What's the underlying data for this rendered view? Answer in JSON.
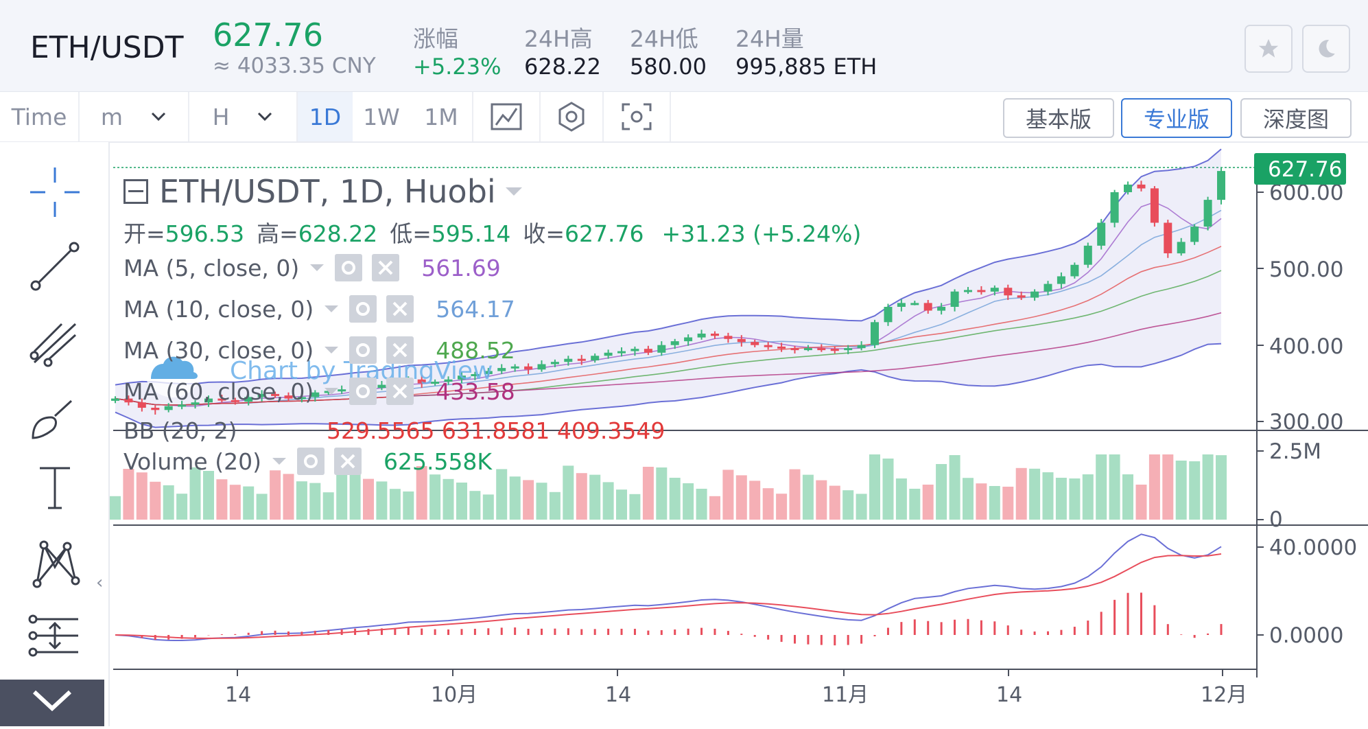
{
  "header": {
    "symbol": "ETH/USDT",
    "last_price": "627.76",
    "cny": "≈ 4033.35 CNY",
    "stats": [
      {
        "label": "涨幅",
        "value": "+5.23%"
      },
      {
        "label": "24H高",
        "value": "628.22"
      },
      {
        "label": "24H低",
        "value": "580.00"
      },
      {
        "label": "24H量",
        "value": "995,885 ETH"
      }
    ]
  },
  "toolbar": {
    "time": "Time",
    "minute": "m",
    "hour": "H",
    "intervals": [
      "1D",
      "1W",
      "1M"
    ],
    "active_interval": "1D",
    "views": [
      "基本版",
      "专业版",
      "深度图"
    ],
    "active_view": "专业版"
  },
  "legend": {
    "title": "ETH/USDT, 1D, Huobi",
    "ohlc": {
      "o_label": "开=",
      "o": "596.53",
      "h_label": "高=",
      "h": "628.22",
      "l_label": "低=",
      "l": "595.14",
      "c_label": "收=",
      "c": "627.76",
      "change": "+31.23 (+5.24%)"
    },
    "ma": [
      {
        "name": "MA (5, close, 0)",
        "value": "561.69",
        "color": "#9c5fc9"
      },
      {
        "name": "MA (10, close, 0)",
        "value": "564.17",
        "color": "#6f9fd8"
      },
      {
        "name": "MA (30, close, 0)",
        "value": "488.52",
        "color": "#4fa84f"
      },
      {
        "name": "MA (60, close, 0)",
        "value": "433.58",
        "color": "#b0307e"
      }
    ],
    "bb_partial": "BB (20, 2)",
    "bb_values": "529.5565   631.8581   409.3549",
    "volume_name": "Volume (20)",
    "volume_value": "625.558K",
    "watermark": "Chart by TradingView"
  },
  "price_axis": {
    "ticks": [
      "600.00",
      "500.00",
      "400.00",
      "300.00"
    ],
    "last_tag": "627.76"
  },
  "volume_axis": {
    "ticks": [
      "2.5M",
      "0"
    ]
  },
  "macd_axis": {
    "ticks": [
      "40.0000",
      "0.0000"
    ]
  },
  "time_axis": {
    "ticks": [
      "14",
      "10月",
      "14",
      "11月",
      "14",
      "12月"
    ]
  },
  "colors": {
    "up": "#3bb57a",
    "down": "#e84d5b",
    "accent": "#3a79d6",
    "price_tag": "#1aa265"
  },
  "chart_data": {
    "type": "candlestick",
    "interval": "1D",
    "ohlc_close_approx": [
      330,
      325,
      318,
      315,
      320,
      322,
      325,
      330,
      328,
      326,
      332,
      336,
      334,
      330,
      332,
      338,
      340,
      342,
      345,
      344,
      348,
      350,
      355,
      350,
      352,
      355,
      360,
      362,
      366,
      370,
      372,
      368,
      375,
      378,
      382,
      380,
      386,
      390,
      392,
      395,
      390,
      400,
      405,
      410,
      415,
      412,
      408,
      404,
      400,
      398,
      396,
      395,
      396,
      395,
      394,
      396,
      400,
      430,
      450,
      455,
      455,
      445,
      450,
      470,
      472,
      470,
      475,
      465,
      462,
      470,
      480,
      490,
      505,
      530,
      560,
      600,
      610,
      605,
      560,
      520,
      535,
      555,
      590,
      627.76
    ],
    "volume_last": "625.558K",
    "macd_range": [
      -15,
      45
    ]
  }
}
